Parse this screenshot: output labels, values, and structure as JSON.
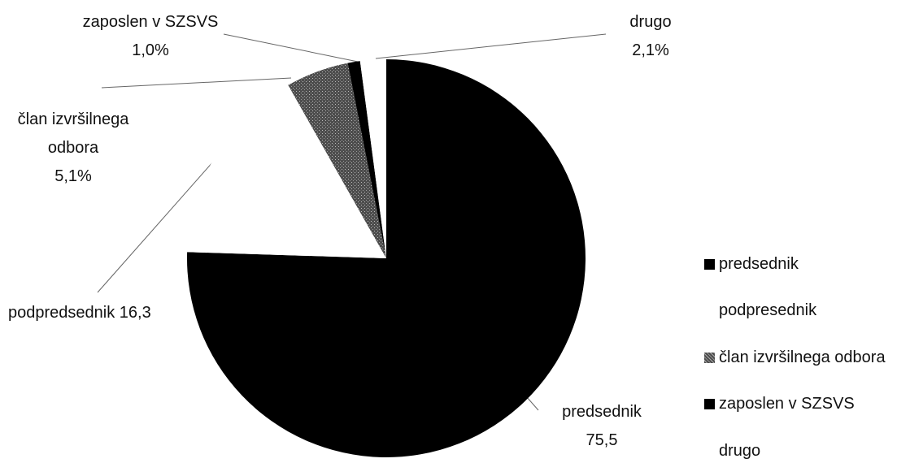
{
  "chart_data": {
    "type": "pie",
    "categories": [
      "predsednik",
      "podpresednik",
      "član izvršilnega odbora",
      "zaposlen v SZSVS",
      "drugo"
    ],
    "data_labels": [
      "predsednik",
      "podpredsednik",
      "član izvršilnega odbora",
      "zaposlen v SZSVS",
      "drugo"
    ],
    "values": [
      75.5,
      16.3,
      5.1,
      1.0,
      2.1
    ],
    "value_labels": [
      "75,5",
      "16,3",
      "5,1%",
      "1,0%",
      "2,1%"
    ],
    "colors": [
      "#000000",
      "#ffffff",
      "#4d4d4d",
      "#000000",
      "#ffffff"
    ],
    "legend": "right"
  }
}
